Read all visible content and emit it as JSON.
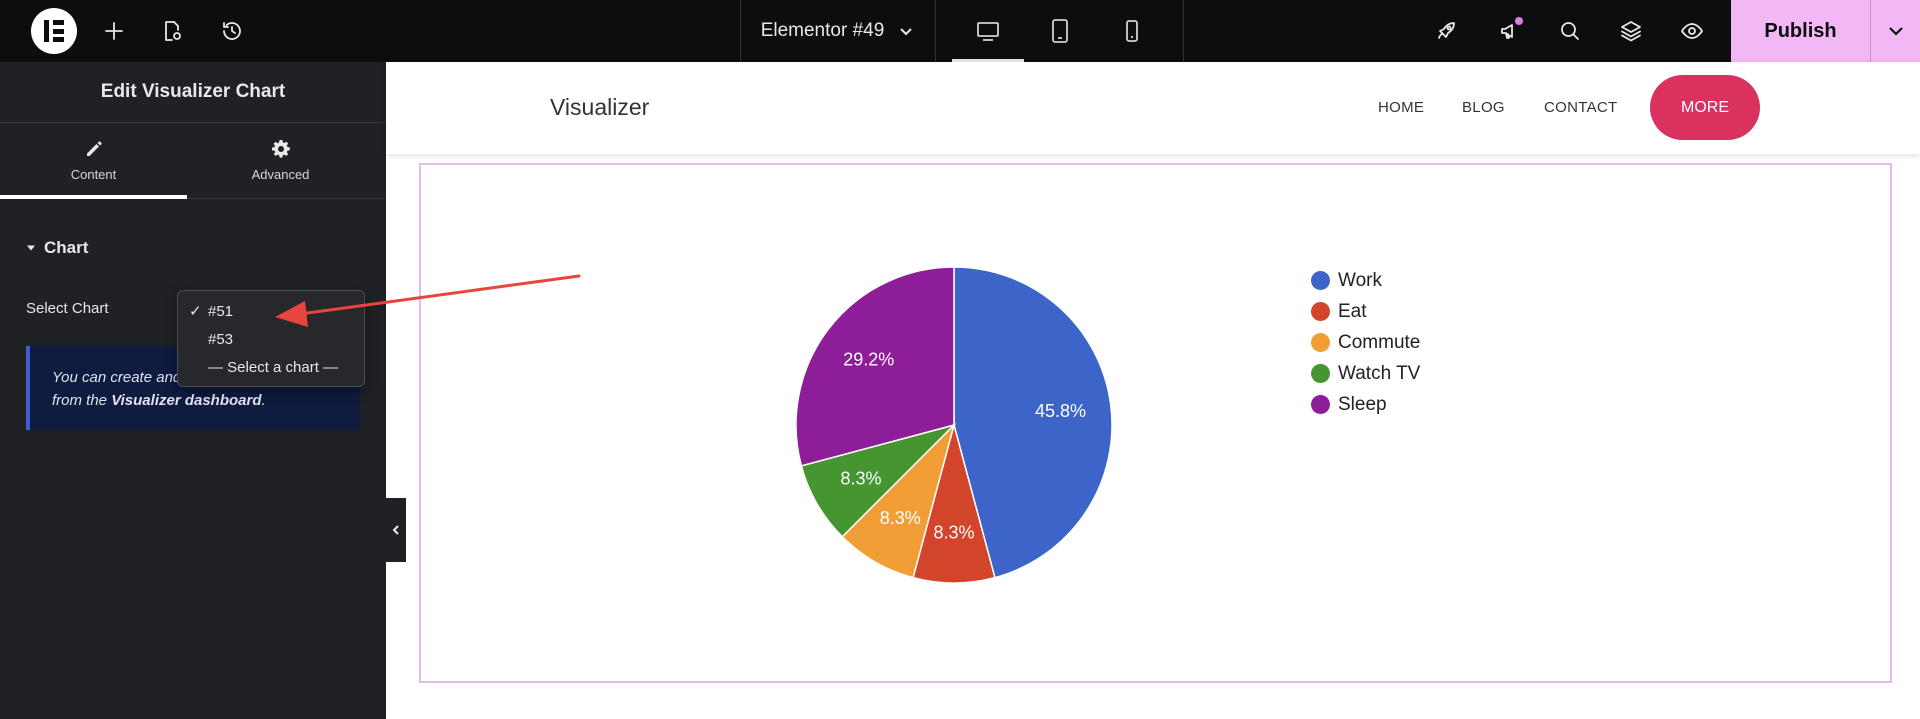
{
  "topbar": {
    "doc_title": "Elementor #49",
    "publish_label": "Publish"
  },
  "panel": {
    "title": "Edit Visualizer Chart",
    "tabs": [
      {
        "label": "Content",
        "icon": "pencil-icon",
        "active": true
      },
      {
        "label": "Advanced",
        "icon": "gear-icon",
        "active": false
      }
    ],
    "section_title": "Chart",
    "select_label": "Select Chart",
    "info_line1": "You can create and",
    "info_line2_prefix": "from the ",
    "info_line2_bold": "Visualizer dashboard",
    "info_line2_suffix": "."
  },
  "dropdown": {
    "options": [
      "#51",
      "#53",
      "— Select a chart —"
    ],
    "selected_index": 0,
    "check_mark": "✓"
  },
  "site": {
    "logo": "Visualizer",
    "nav": [
      "HOME",
      "BLOG",
      "CONTACT"
    ],
    "more_label": "MORE"
  },
  "colors": {
    "accent_publish": "#f1b8f5",
    "more_button": "#d9325f",
    "annotation_arrow": "#e8453c"
  },
  "chart_data": {
    "type": "pie",
    "categories": [
      "Work",
      "Eat",
      "Commute",
      "Watch TV",
      "Sleep"
    ],
    "values": [
      11,
      2,
      2,
      2,
      7
    ],
    "labels": [
      "45.8%",
      "8.3%",
      "8.3%",
      "8.3%",
      "29.2%"
    ],
    "colors": [
      "#3d65c9",
      "#d2452a",
      "#f29e37",
      "#459531",
      "#8d1d99"
    ],
    "legend": "right"
  }
}
